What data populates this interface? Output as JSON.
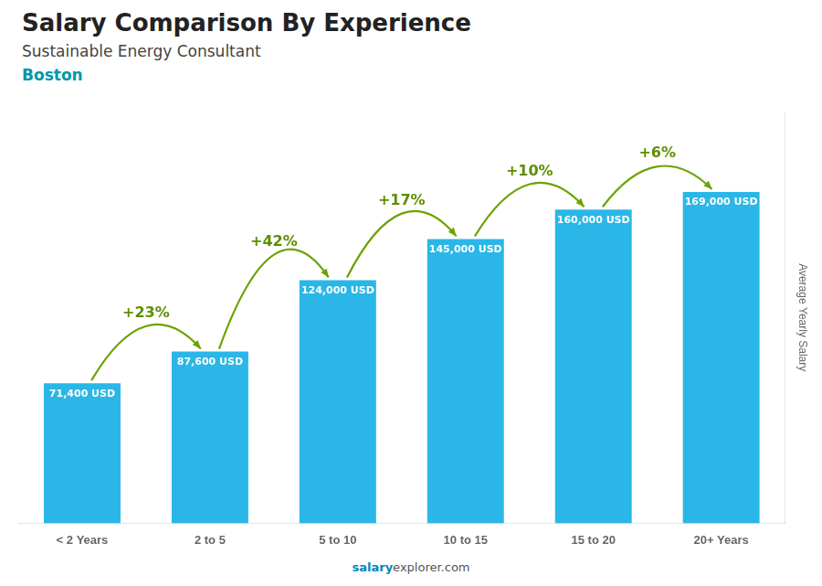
{
  "chart_data": {
    "type": "bar",
    "title": "Salary Comparison By Experience",
    "subtitle": "Sustainable Energy Consultant",
    "city": "Boston",
    "ylabel": "Average Yearly Salary",
    "footer_bold": "salary",
    "footer_rest": "explorer.com",
    "categories": [
      "< 2 Years",
      "2 to 5",
      "5 to 10",
      "10 to 15",
      "15 to 20",
      "20+ Years"
    ],
    "values": [
      71400,
      87600,
      124000,
      145000,
      160000,
      169000
    ],
    "value_labels": [
      "71,400 USD",
      "87,600 USD",
      "124,000 USD",
      "145,000 USD",
      "160,000 USD",
      "169,000 USD"
    ],
    "data_labels": true,
    "pct_changes": [
      "+23%",
      "+42%",
      "+17%",
      "+10%",
      "+6%"
    ],
    "color": "#2ab7e8",
    "ylim": [
      0,
      210000
    ],
    "grid": false,
    "tick_labels": "x"
  }
}
